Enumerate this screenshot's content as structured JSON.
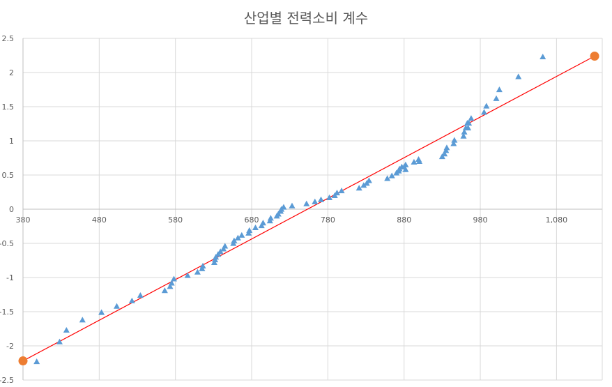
{
  "chart_data": {
    "type": "scatter",
    "title": "산업별 전력소비 계수",
    "xlim": [
      380,
      1140
    ],
    "ylim": [
      -2.5,
      2.5
    ],
    "x_ticks": [
      380,
      480,
      580,
      680,
      780,
      880,
      980,
      1080
    ],
    "x_tick_labels": [
      "380",
      "480",
      "580",
      "680",
      "780",
      "880",
      "980",
      "1,080"
    ],
    "y_ticks": [
      2.5,
      2,
      1.5,
      1,
      0.5,
      0,
      -0.5,
      -1,
      -1.5,
      -2,
      -2.5
    ],
    "y_tick_labels": [
      "2.5",
      "2",
      "1.5",
      "1",
      "0.5",
      "0",
      "-0.5",
      "-1",
      "-1.5",
      "-2",
      "-2.5"
    ],
    "grid": true,
    "colors": {
      "points": "#5b9bd5",
      "line": "#ff0000",
      "endpoints": "#ed7d31",
      "grid": "#d9d9d9"
    },
    "series": [
      {
        "marker": "triangle",
        "x": [
          398,
          428,
          437,
          458,
          483,
          503,
          523,
          534,
          566,
          573,
          575,
          578,
          596,
          609,
          615,
          616,
          631,
          632,
          633,
          636,
          639,
          643,
          645,
          656,
          657,
          662,
          667,
          676,
          677,
          685,
          693,
          695,
          704,
          705,
          713,
          715,
          718,
          719,
          722,
          733,
          752,
          763,
          771,
          782,
          789,
          792,
          798,
          821,
          827,
          831,
          834,
          858,
          864,
          870,
          873,
          874,
          877,
          882,
          882,
          880,
          893,
          899,
          900,
          930,
          933,
          935,
          936,
          945,
          946,
          958,
          959,
          961,
          963,
          964,
          965,
          968,
          985,
          988,
          1001,
          1005,
          1030,
          1062
        ],
        "y": [
          -2.23,
          -1.94,
          -1.77,
          -1.62,
          -1.51,
          -1.42,
          -1.34,
          -1.26,
          -1.19,
          -1.13,
          -1.08,
          -1.02,
          -0.97,
          -0.92,
          -0.87,
          -0.83,
          -0.78,
          -0.74,
          -0.7,
          -0.66,
          -0.62,
          -0.58,
          -0.54,
          -0.5,
          -0.46,
          -0.42,
          -0.38,
          -0.35,
          -0.31,
          -0.27,
          -0.24,
          -0.2,
          -0.17,
          -0.13,
          -0.1,
          -0.07,
          -0.03,
          0.0,
          0.03,
          0.05,
          0.08,
          0.11,
          0.14,
          0.17,
          0.2,
          0.24,
          0.27,
          0.31,
          0.35,
          0.38,
          0.42,
          0.45,
          0.49,
          0.53,
          0.56,
          0.59,
          0.62,
          0.65,
          0.58,
          0.62,
          0.69,
          0.73,
          0.7,
          0.77,
          0.81,
          0.86,
          0.9,
          0.96,
          1.01,
          1.07,
          1.13,
          1.19,
          1.26,
          1.19,
          1.26,
          1.33,
          1.42,
          1.51,
          1.62,
          1.75,
          1.94,
          2.23
        ]
      },
      {
        "marker": "circle-line",
        "x": [
          380,
          1130
        ],
        "y": [
          -2.22,
          2.24
        ]
      }
    ]
  }
}
